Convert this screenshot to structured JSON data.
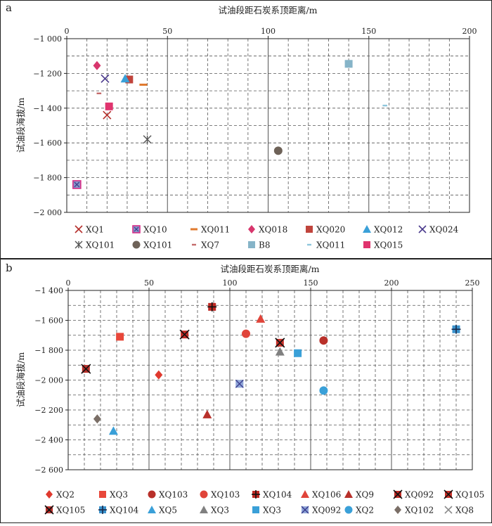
{
  "chart_data": [
    {
      "type": "scatter",
      "panel_label": "a",
      "title": "试油段距石炭系顶距离/m",
      "xlabel": "试油段距石炭系顶距离/m",
      "ylabel": "试油段海拔/m",
      "xlim": [
        0,
        200
      ],
      "ylim": [
        -2000,
        -1000
      ],
      "xticks": [
        0,
        50,
        100,
        150,
        200
      ],
      "yticks": [
        -1000,
        -1200,
        -1400,
        -1600,
        -1800,
        -2000
      ],
      "ytick_labels": [
        "−1 000",
        "−1 200",
        "−1 400",
        "−1 600",
        "−1 800",
        "−2 000"
      ],
      "grid": true,
      "legend_position": "bottom",
      "series": [
        {
          "name": "XQ1",
          "marker": "x",
          "color": "#b5302c",
          "points": [
            [
              20,
              -1440
            ]
          ]
        },
        {
          "name": "XQ10",
          "marker": "square-x",
          "color": "#d62d88",
          "points": [
            [
              5,
              -1840
            ]
          ]
        },
        {
          "name": "XQ011",
          "marker": "dash",
          "color": "#e07a2e",
          "points": [
            [
              38,
              -1265
            ]
          ]
        },
        {
          "name": "XQ018",
          "marker": "diamond",
          "color": "#d8366d",
          "points": [
            [
              15,
              -1155
            ]
          ]
        },
        {
          "name": "XQ020",
          "marker": "square",
          "color": "#c0443c",
          "points": [
            [
              31,
              -1235
            ]
          ]
        },
        {
          "name": "XQ012",
          "marker": "triangle",
          "color": "#3aa0d8",
          "points": [
            [
              29,
              -1230
            ]
          ]
        },
        {
          "name": "XQ024",
          "marker": "x",
          "color": "#4a3a8c",
          "points": [
            [
              19,
              -1230
            ]
          ]
        },
        {
          "name": "XQ101",
          "marker": "asterisk",
          "color": "#555555",
          "points": [
            [
              40,
              -1580
            ]
          ]
        },
        {
          "name": "XQ101",
          "marker": "circle",
          "color": "#6e6258",
          "points": [
            [
              105,
              -1645
            ]
          ]
        },
        {
          "name": "XQ7",
          "marker": "dash-short",
          "color": "#c46a6a",
          "points": [
            [
              16,
              -1315
            ]
          ]
        },
        {
          "name": "B8",
          "marker": "square",
          "color": "#86b4c8",
          "points": [
            [
              140,
              -1145
            ]
          ]
        },
        {
          "name": "XQ011",
          "marker": "dash-short",
          "color": "#8ec6dc",
          "points": [
            [
              158,
              -1385
            ]
          ]
        },
        {
          "name": "XQ015",
          "marker": "square",
          "color": "#e0346e",
          "points": [
            [
              21,
              -1390
            ]
          ]
        }
      ]
    },
    {
      "type": "scatter",
      "panel_label": "b",
      "title": "试油段距石炭系顶距离/m",
      "xlabel": "试油段距石炭系顶距离/m",
      "ylabel": "试油段海拔/m",
      "xlim": [
        0,
        250
      ],
      "ylim": [
        -2600,
        -1400
      ],
      "xticks": [
        0,
        50,
        100,
        150,
        200,
        250
      ],
      "yticks": [
        -1400,
        -1600,
        -1800,
        -2000,
        -2200,
        -2400,
        -2600
      ],
      "ytick_labels": [
        "−1 400",
        "−1 600",
        "−1 800",
        "−2 000",
        "−2 200",
        "−2 400",
        "−2 600"
      ],
      "grid": true,
      "legend_position": "bottom",
      "series": [
        {
          "name": "XQ2",
          "marker": "diamond",
          "color": "#e0392e",
          "points": [
            [
              56,
              -1965
            ]
          ]
        },
        {
          "name": "XQ3",
          "marker": "square",
          "color": "#e8473a",
          "points": [
            [
              32,
              -1710
            ]
          ]
        },
        {
          "name": "XQ103",
          "marker": "circle",
          "color": "#b8302a",
          "points": [
            [
              158,
              -1735
            ]
          ]
        },
        {
          "name": "XQ103",
          "marker": "circle",
          "color": "#e0443a",
          "points": [
            [
              110,
              -1690
            ]
          ]
        },
        {
          "name": "XQ104",
          "marker": "square-plus",
          "color": "#c02a24",
          "points": [
            [
              89,
              -1510
            ]
          ]
        },
        {
          "name": "XQ106",
          "marker": "triangle",
          "color": "#e0443a",
          "points": [
            [
              119,
              -1590
            ]
          ]
        },
        {
          "name": "XQ9",
          "marker": "triangle",
          "color": "#b8302a",
          "points": [
            [
              86,
              -2230
            ]
          ]
        },
        {
          "name": "XQ092",
          "marker": "square-xx",
          "color": "#c02a24",
          "points": [
            [
              72,
              -1695
            ]
          ]
        },
        {
          "name": "XQ105",
          "marker": "square-xx",
          "color": "#c83028",
          "points": [
            [
              131,
              -1750
            ]
          ]
        },
        {
          "name": "XQ105",
          "marker": "square-xx",
          "color": "#b8302a",
          "points": [
            [
              11,
              -1925
            ]
          ]
        },
        {
          "name": "XQ104",
          "marker": "square-plus-blue",
          "color": "#3a92cc",
          "points": [
            [
              240,
              -1660
            ]
          ]
        },
        {
          "name": "XQ5",
          "marker": "triangle",
          "color": "#3aa0d8",
          "points": [
            [
              28,
              -2340
            ]
          ]
        },
        {
          "name": "XQ3",
          "marker": "triangle",
          "color": "#808080",
          "points": [
            [
              131,
              -1810
            ]
          ]
        },
        {
          "name": "XQ3",
          "marker": "square",
          "color": "#3aa0d8",
          "points": [
            [
              142,
              -1820
            ]
          ]
        },
        {
          "name": "XQ092",
          "marker": "square-x-blue",
          "color": "#5a86c8",
          "points": [
            [
              106,
              -2025
            ]
          ]
        },
        {
          "name": "XQ2",
          "marker": "circle",
          "color": "#3aa0d8",
          "points": [
            [
              158,
              -2070
            ]
          ]
        },
        {
          "name": "XQ102",
          "marker": "diamond",
          "color": "#7a6e66",
          "points": [
            [
              18,
              -2260
            ]
          ]
        },
        {
          "name": "XQ8",
          "marker": "x",
          "color": "#8a8a8a",
          "points": []
        }
      ]
    }
  ]
}
